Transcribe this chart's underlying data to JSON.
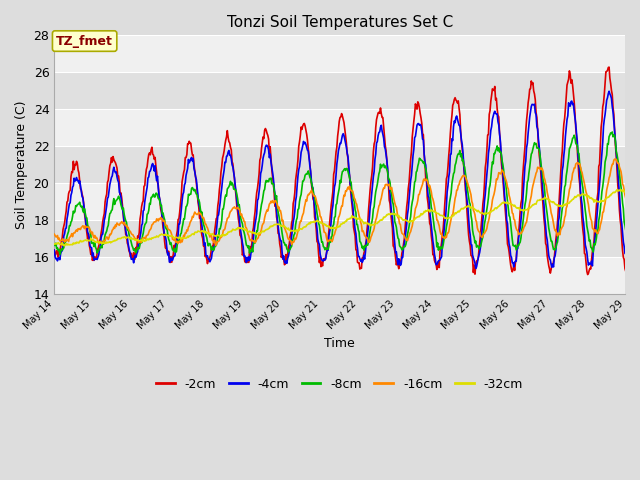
{
  "title": "Tonzi Soil Temperatures Set C",
  "xlabel": "Time",
  "ylabel": "Soil Temperature (C)",
  "ylim": [
    14,
    28
  ],
  "yticks": [
    14,
    16,
    18,
    20,
    22,
    24,
    26,
    28
  ],
  "x_tick_labels": [
    "May 14",
    "May 15",
    "May 16",
    "May 17",
    "May 18",
    "May 19",
    "May 20",
    "May 21",
    "May 22",
    "May 23",
    "May 24",
    "May 25",
    "May 26",
    "May 27",
    "May 28",
    "May 29"
  ],
  "annotation_text": "TZ_fmet",
  "annotation_color": "#8B0000",
  "annotation_bg": "#FFFFCC",
  "annotation_border": "#AAAA00",
  "series_colors": [
    "#DD0000",
    "#0000EE",
    "#00BB00",
    "#FF8800",
    "#DDDD00"
  ],
  "series_labels": [
    "-2cm",
    "-4cm",
    "-8cm",
    "-16cm",
    "-32cm"
  ],
  "background_color": "#DDDDDD",
  "plot_bg_light": "#F0F0F0",
  "plot_bg_dark": "#E0E0E0",
  "grid_color": "#FFFFFF",
  "linewidth": 1.2
}
